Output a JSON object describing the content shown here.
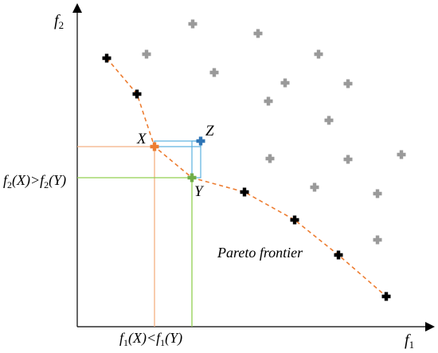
{
  "axes": {
    "x_label_base": "f",
    "x_label_sub": "1",
    "y_label_base": "f",
    "y_label_sub": "2"
  },
  "points": {
    "X_label": "X",
    "Y_label": "Y",
    "Z_label": "Z"
  },
  "annotations": {
    "y_inequality": {
      "f1": "f",
      "s1": "2",
      "a1": "(X)>",
      "f2": "f",
      "s2": "2",
      "a2": "(Y)"
    },
    "x_inequality": {
      "f1": "f",
      "s1": "1",
      "a1": "(X)<",
      "f2": "f",
      "s2": "1",
      "a2": "(Y)"
    },
    "frontier_label": "Pareto frontier"
  },
  "colors": {
    "axis": "#000000",
    "frontier_line": "#ed7d31",
    "dominated_marker": "#9a9a9a",
    "pareto_marker": "#000000",
    "x_point": "#ed7d31",
    "y_point": "#70ad47",
    "z_point": "#2e75b6",
    "z_box": "#5bb0e0"
  }
}
